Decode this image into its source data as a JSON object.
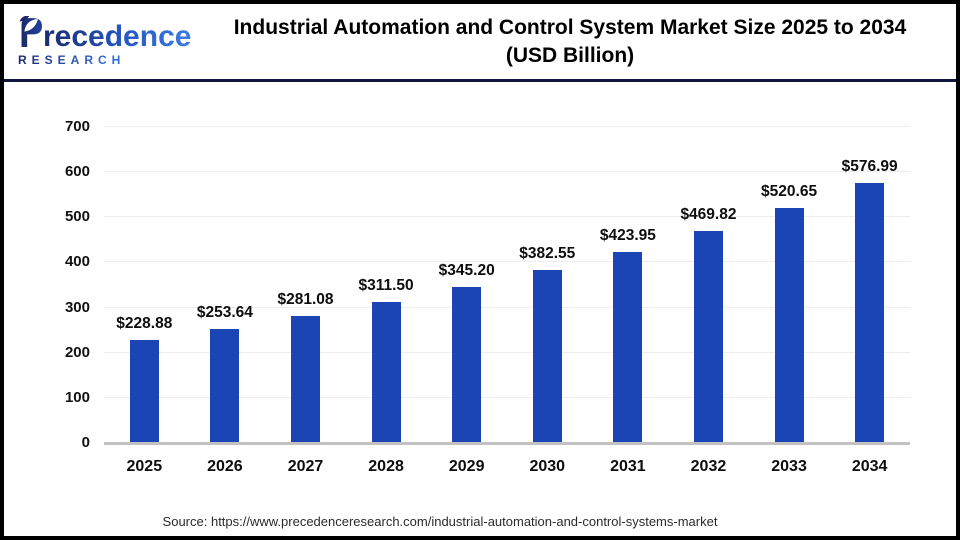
{
  "header": {
    "logo": {
      "name": "Precedence Research",
      "line1_rest": "recedence",
      "line2": "RESEARCH"
    },
    "title_line1": "Industrial Automation and Control System Market Size 2025 to 2034",
    "title_line2": "(USD Billion)"
  },
  "chart_data": {
    "type": "bar",
    "title": "Industrial Automation and Control System Market Size 2025 to 2034 (USD Billion)",
    "categories": [
      "2025",
      "2026",
      "2027",
      "2028",
      "2029",
      "2030",
      "2031",
      "2032",
      "2033",
      "2034"
    ],
    "values": [
      228.88,
      253.64,
      281.08,
      311.5,
      345.2,
      382.55,
      423.95,
      469.82,
      520.65,
      576.99
    ],
    "value_labels": [
      "$228.88",
      "$253.64",
      "$281.08",
      "$311.50",
      "$345.20",
      "$382.55",
      "$423.95",
      "$469.82",
      "$520.65",
      "$576.99"
    ],
    "xlabel": "",
    "ylabel": "",
    "ylim": [
      0,
      700
    ],
    "ytick_step": 100,
    "yticks": [
      "0",
      "100",
      "200",
      "300",
      "400",
      "500",
      "600",
      "700"
    ],
    "grid": "horizontal",
    "legend_position": "none",
    "bar_color_hex": "#1b44b5",
    "gridline_color_hex": "#eeeeee",
    "axis_line_color_hex": "#c2c2c2"
  },
  "footer": {
    "source": "Source: https://www.precedenceresearch.com/industrial-automation-and-control-systems-market"
  }
}
